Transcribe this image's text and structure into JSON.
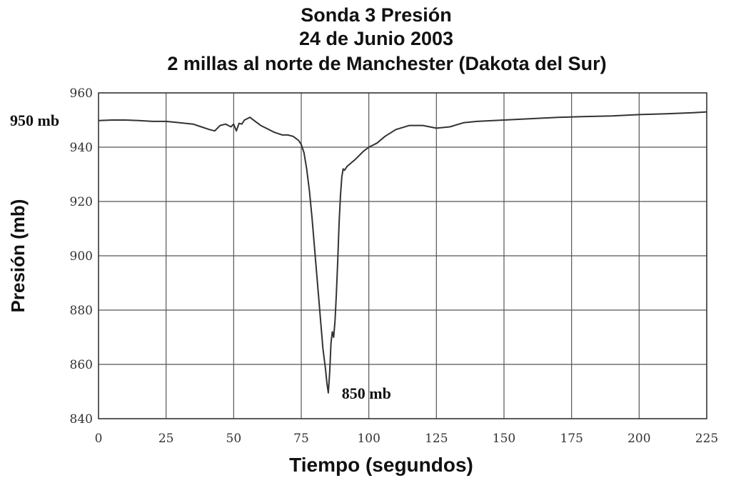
{
  "chart_data": {
    "type": "line",
    "title": [
      "Sonda 3   Presión",
      "24 de Junio 2003",
      "2 millas al norte de Manchester (Dakota del Sur)"
    ],
    "xlabel": "Tiempo (segundos)",
    "ylabel": "Presión (mb)",
    "xlim": [
      0,
      225
    ],
    "ylim": [
      840,
      960
    ],
    "xticks": [
      0,
      25,
      50,
      75,
      100,
      125,
      150,
      175,
      200,
      225
    ],
    "yticks": [
      840,
      860,
      880,
      900,
      920,
      940,
      960
    ],
    "grid": true,
    "series": [
      {
        "x": [
          0,
          5,
          10,
          15,
          20,
          25,
          30,
          35,
          38,
          41,
          43,
          45,
          47,
          49,
          50,
          51,
          52,
          53,
          54,
          55,
          56,
          58,
          60,
          62,
          65,
          68,
          70,
          72,
          74,
          75,
          76,
          77,
          78,
          79,
          80,
          81,
          82,
          83,
          84,
          84.5,
          85,
          85.5,
          86,
          86.5,
          87,
          87.5,
          88,
          88.5,
          89,
          89.5,
          90,
          90.5,
          91,
          92,
          95,
          98,
          100,
          103,
          106,
          110,
          115,
          120,
          125,
          130,
          135,
          140,
          150,
          160,
          170,
          180,
          190,
          200,
          210,
          220,
          225
        ],
        "y": [
          949.8,
          950,
          950,
          949.8,
          949.5,
          949.5,
          949,
          948.5,
          947.5,
          946.5,
          946,
          948,
          948.5,
          947.5,
          948.5,
          946,
          948.8,
          948.5,
          950,
          950.5,
          951,
          949.5,
          948,
          947,
          945.5,
          944.5,
          944.5,
          944,
          942.5,
          941,
          938,
          932,
          924,
          914,
          902,
          890,
          878,
          866,
          858,
          853,
          849.5,
          857,
          868,
          872,
          870,
          876,
          886,
          898,
          912,
          922,
          929,
          932,
          931.5,
          933,
          935.5,
          938.5,
          940,
          941.5,
          944,
          946.5,
          948,
          948,
          947,
          947.5,
          949,
          949.5,
          950,
          950.5,
          951,
          951.3,
          951.5,
          952,
          952.3,
          952.7,
          953
        ]
      }
    ],
    "annotations": [
      {
        "text": "950 mb",
        "y": 950,
        "placement": "left of y-axis"
      },
      {
        "text": "850 mb",
        "x": 90,
        "y": 850,
        "placement": "right of minimum"
      }
    ]
  }
}
